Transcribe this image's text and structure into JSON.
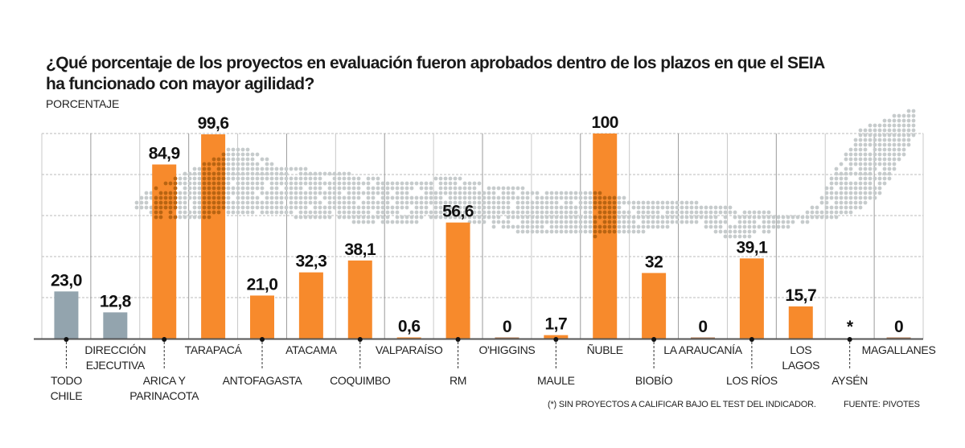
{
  "header": {
    "title_line1": "¿Qué porcentaje de los proyectos en evaluación fueron aprobados dentro de los plazos en que el SEIA",
    "title_line2": "ha funcionado con mayor agilidad?",
    "unit_label": "PORCENTAJE"
  },
  "footer": {
    "note": "(*) SIN PROYECTOS A CALIFICAR BAJO EL TEST DEL INDICADOR.",
    "source": "FUENTE: PIVOTES"
  },
  "colors": {
    "national": "#93a4ae",
    "regional": "#f78a2c",
    "map_dots": "#c6cbcc",
    "map_dots_over_bar": "#b86412",
    "axis": "#555555",
    "grid": "#bbbbbb"
  },
  "chart_data": {
    "type": "bar",
    "title": "¿Qué porcentaje de los proyectos en evaluación fueron aprobados dentro de los plazos en que el SEIA ha funcionado con mayor agilidad?",
    "ylabel": "PORCENTAJE",
    "xlabel": "",
    "ylim": [
      0,
      100
    ],
    "grid": true,
    "categories": [
      "TODO CHILE",
      "DIRECCIÓN EJECUTIVA",
      "ARICA Y PARINACOTA",
      "TARAPACÁ",
      "ANTOFAGASTA",
      "ATACAMA",
      "COQUIMBO",
      "VALPARAÍSO",
      "RM",
      "O'HIGGINS",
      "MAULE",
      "ÑUBLE",
      "BIOBÍO",
      "LA ARAUCANÍA",
      "LOS RÍOS",
      "LOS LAGOS",
      "AYSÉN",
      "MAGALLANES"
    ],
    "values": [
      23.0,
      12.8,
      84.9,
      99.6,
      21.0,
      32.3,
      38.1,
      0.6,
      56.6,
      0,
      1.7,
      100,
      32,
      0,
      39.1,
      15.7,
      null,
      0
    ],
    "value_labels": [
      "23,0",
      "12,8",
      "84,9",
      "99,6",
      "21,0",
      "32,3",
      "38,1",
      "0,6",
      "56,6",
      "0",
      "1,7",
      "100",
      "32",
      "0",
      "39,1",
      "15,7",
      "*",
      "0"
    ],
    "bar_groups": [
      "national",
      "national",
      "regional",
      "regional",
      "regional",
      "regional",
      "regional",
      "regional",
      "regional",
      "regional",
      "regional",
      "regional",
      "regional",
      "regional",
      "regional",
      "regional",
      "regional",
      "regional"
    ],
    "label_lines": [
      [
        "TODO",
        "CHILE"
      ],
      [
        "DIRECCIÓN",
        "EJECUTIVA"
      ],
      [
        "ARICA Y",
        "PARINACOTA"
      ],
      [
        "TARAPACÁ"
      ],
      [
        "ANTOFAGASTA"
      ],
      [
        "ATACAMA"
      ],
      [
        "COQUIMBO"
      ],
      [
        "VALPARAÍSO"
      ],
      [
        "RM"
      ],
      [
        "O'HIGGINS"
      ],
      [
        "MAULE"
      ],
      [
        "ÑUBLE"
      ],
      [
        "BIOBÍO"
      ],
      [
        "LA ARAUCANÍA"
      ],
      [
        "LOS RÍOS"
      ],
      [
        "LOS",
        "LAGOS"
      ],
      [
        "AYSÉN"
      ],
      [
        "MAGALLANES"
      ]
    ],
    "label_placement": [
      "low-leader",
      "high",
      "low-leader",
      "high",
      "low-leader",
      "high",
      "low-leader",
      "high",
      "low-leader",
      "high",
      "low-leader",
      "high",
      "low-leader",
      "high",
      "low-leader",
      "high",
      "low-leader",
      "high"
    ],
    "annotations": [
      "* = sin proyectos a calificar bajo el test del indicador"
    ]
  }
}
